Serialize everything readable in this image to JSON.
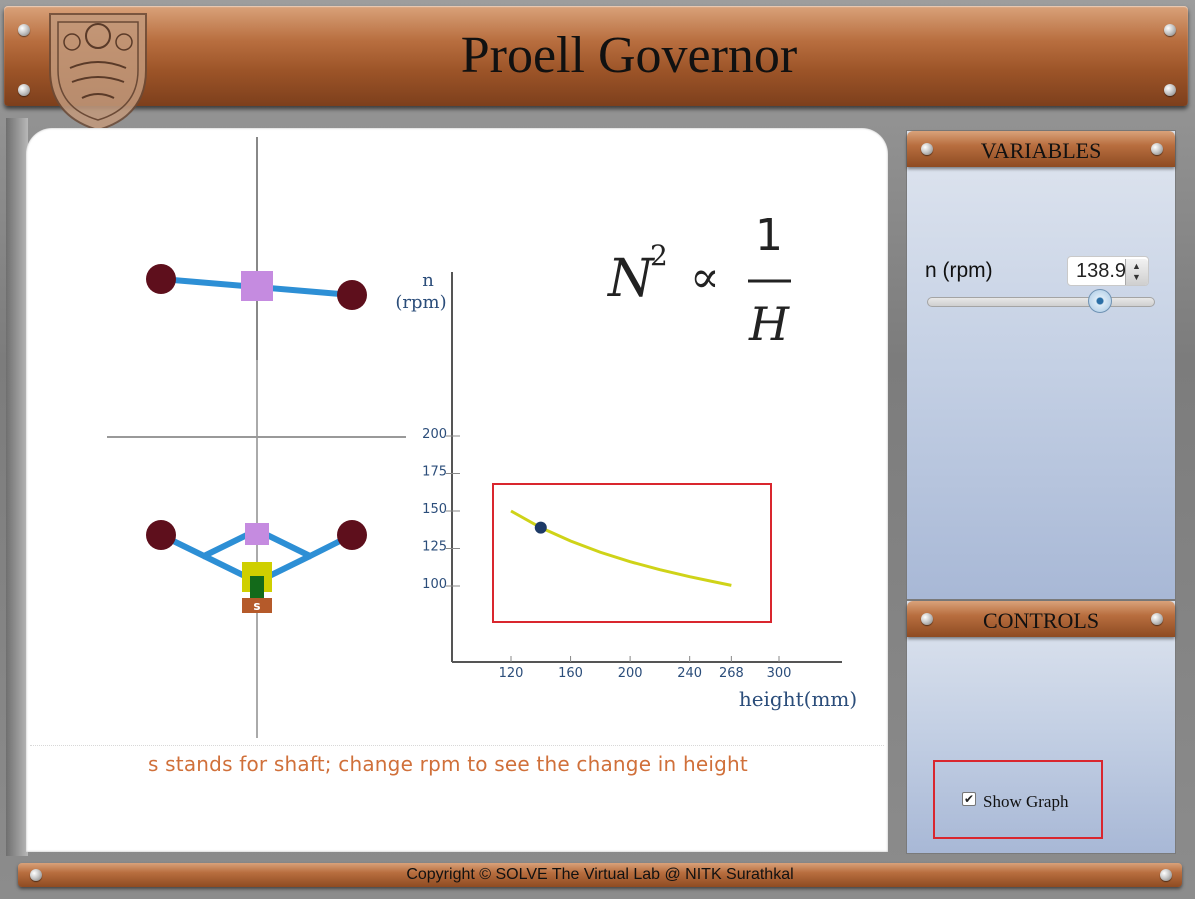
{
  "header": {
    "title": "Proell Governor",
    "logo_icon": "nitk-emblem-icon"
  },
  "formula": {
    "lhs": "N",
    "exponent": "2",
    "relation": "∝",
    "numerator": "1",
    "denominator": "H"
  },
  "diagram": {
    "shaft_label": "s",
    "colors": {
      "arm": "#2d8fd5",
      "ball": "#5e0f1c",
      "sleeve": "#c58be0",
      "yellow_block": "#cfcf00",
      "green_block": "#136a1a",
      "shaft_block": "#b55a2a"
    }
  },
  "chart_data": {
    "type": "line",
    "ylabel": "n\n(rpm)",
    "ylabel_line1": "n",
    "ylabel_line2": "(rpm)",
    "xlabel": "height(mm)",
    "xticks": [
      120,
      160,
      200,
      240,
      268,
      300
    ],
    "yticks": [
      100,
      125,
      150,
      175,
      200
    ],
    "xlim": [
      80,
      320
    ],
    "ylim": [
      50,
      200
    ],
    "series": [
      {
        "x": [
          120,
          140,
          160,
          180,
          200,
          220,
          240,
          255,
          268
        ],
        "y": [
          150,
          138.9,
          130,
          122.5,
          116.2,
          110.9,
          106.2,
          103.1,
          100.4
        ],
        "color": "#cfd318"
      }
    ],
    "current_point": {
      "x": 140,
      "y": 138.9
    },
    "grid": false
  },
  "caption": "s stands for shaft; change rpm to see the change in height",
  "variables_panel": {
    "title": "VARIABLES",
    "rpm_label": "n (rpm)",
    "rpm_value": "138.9",
    "slider_fraction": 0.76
  },
  "controls_panel": {
    "title": "CONTROLS",
    "show_graph_label": "Show Graph",
    "show_graph_checked": true
  },
  "footer": {
    "text": "Copyright © SOLVE The Virtual Lab @ NITK Surathkal"
  }
}
